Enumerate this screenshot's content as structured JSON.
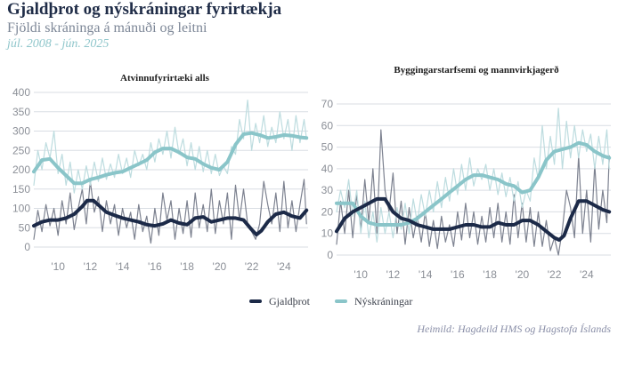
{
  "title": "Gjaldþrot og nýskráningar fyrirtækja",
  "subtitle": "Fjöldi skráninga á mánuði og leitni",
  "period": "júl. 2008 - jún. 2025",
  "source": "Heimild: Hagdeild HMS og Hagstofa Íslands",
  "legend": [
    {
      "label": "Gjaldþrot",
      "color": "#1c2a48"
    },
    {
      "label": "Nýskráningar",
      "color": "#8ac5c9"
    }
  ],
  "colors": {
    "trend_dark": "#1c2a48",
    "raw_dark": "#7d8290",
    "trend_light": "#8ac5c9",
    "raw_light": "#bddcdf",
    "grid": "#d9dde3"
  },
  "chart_data": [
    {
      "type": "line",
      "title": "Atvinnufyrirtæki alls",
      "xlim": [
        2008.5,
        2025.5
      ],
      "ylim": [
        0,
        400
      ],
      "yticks": [
        0,
        50,
        100,
        150,
        200,
        250,
        300,
        350,
        400
      ],
      "xticks": [
        2010,
        2012,
        2014,
        2016,
        2018,
        2020,
        2022,
        2024
      ],
      "xtick_labels": [
        "'10",
        "'12",
        "'14",
        "'16",
        "'18",
        "'20",
        "'22",
        "'24"
      ],
      "grid": true,
      "series": [
        {
          "name": "Gjaldþrot",
          "role": "trend",
          "x": [
            2008.5,
            2009.0,
            2009.5,
            2010.0,
            2010.5,
            2011.0,
            2011.5,
            2011.8,
            2012.2,
            2012.6,
            2013.0,
            2013.5,
            2014.0,
            2014.5,
            2015.0,
            2015.5,
            2016.0,
            2016.5,
            2017.0,
            2017.5,
            2018.0,
            2018.5,
            2019.0,
            2019.5,
            2020.0,
            2020.5,
            2021.0,
            2021.5,
            2022.0,
            2022.3,
            2022.6,
            2023.0,
            2023.5,
            2024.0,
            2024.5,
            2025.0,
            2025.4
          ],
          "y": [
            55,
            65,
            70,
            70,
            75,
            85,
            105,
            120,
            120,
            105,
            90,
            82,
            75,
            70,
            65,
            58,
            55,
            60,
            70,
            62,
            58,
            75,
            78,
            65,
            70,
            75,
            75,
            70,
            45,
            32,
            42,
            65,
            85,
            90,
            80,
            75,
            95
          ]
        },
        {
          "name": "Gjaldþrot",
          "role": "monthly",
          "x": [
            2008.5,
            2008.75,
            2009.0,
            2009.25,
            2009.5,
            2009.75,
            2010.0,
            2010.25,
            2010.5,
            2010.75,
            2011.0,
            2011.25,
            2011.5,
            2011.75,
            2012.0,
            2012.25,
            2012.5,
            2012.75,
            2013.0,
            2013.25,
            2013.5,
            2013.75,
            2014.0,
            2014.25,
            2014.5,
            2014.75,
            2015.0,
            2015.25,
            2015.5,
            2015.75,
            2016.0,
            2016.25,
            2016.5,
            2016.75,
            2017.0,
            2017.25,
            2017.5,
            2017.75,
            2018.0,
            2018.25,
            2018.5,
            2018.75,
            2019.0,
            2019.25,
            2019.5,
            2019.75,
            2020.0,
            2020.25,
            2020.5,
            2020.75,
            2021.0,
            2021.25,
            2021.5,
            2021.75,
            2022.0,
            2022.25,
            2022.5,
            2022.75,
            2023.0,
            2023.25,
            2023.5,
            2023.75,
            2024.0,
            2024.25,
            2024.5,
            2024.75,
            2025.0,
            2025.25,
            2025.4
          ],
          "y": [
            20,
            95,
            40,
            110,
            55,
            100,
            30,
            120,
            60,
            140,
            45,
            100,
            150,
            60,
            170,
            90,
            130,
            40,
            120,
            60,
            110,
            30,
            100,
            50,
            90,
            20,
            110,
            40,
            80,
            10,
            100,
            30,
            140,
            70,
            120,
            20,
            100,
            35,
            120,
            25,
            140,
            50,
            110,
            40,
            150,
            35,
            120,
            60,
            140,
            20,
            160,
            70,
            150,
            60,
            40,
            20,
            60,
            170,
            110,
            60,
            140,
            40,
            170,
            50,
            120,
            40,
            110,
            175,
            60
          ]
        },
        {
          "name": "Nýskráningar",
          "role": "trend",
          "x": [
            2008.5,
            2009.0,
            2009.5,
            2010.0,
            2010.5,
            2011.0,
            2011.5,
            2012.0,
            2012.5,
            2013.0,
            2013.5,
            2014.0,
            2014.5,
            2015.0,
            2015.5,
            2016.0,
            2016.5,
            2017.0,
            2017.5,
            2018.0,
            2018.5,
            2019.0,
            2019.5,
            2020.0,
            2020.5,
            2021.0,
            2021.5,
            2022.0,
            2022.5,
            2023.0,
            2023.5,
            2024.0,
            2024.5,
            2025.0,
            2025.4
          ],
          "y": [
            195,
            225,
            228,
            205,
            185,
            165,
            165,
            175,
            180,
            187,
            192,
            195,
            205,
            215,
            225,
            245,
            255,
            255,
            245,
            232,
            228,
            215,
            205,
            200,
            220,
            265,
            292,
            295,
            290,
            282,
            285,
            290,
            288,
            284,
            282
          ]
        },
        {
          "name": "Nýskráningar",
          "role": "monthly",
          "x": [
            2008.5,
            2008.75,
            2009.0,
            2009.25,
            2009.5,
            2009.75,
            2010.0,
            2010.25,
            2010.5,
            2010.75,
            2011.0,
            2011.25,
            2011.5,
            2011.75,
            2012.0,
            2012.25,
            2012.5,
            2012.75,
            2013.0,
            2013.25,
            2013.5,
            2013.75,
            2014.0,
            2014.25,
            2014.5,
            2014.75,
            2015.0,
            2015.25,
            2015.5,
            2015.75,
            2016.0,
            2016.25,
            2016.5,
            2016.75,
            2017.0,
            2017.25,
            2017.5,
            2017.75,
            2018.0,
            2018.25,
            2018.5,
            2018.75,
            2019.0,
            2019.25,
            2019.5,
            2019.75,
            2020.0,
            2020.25,
            2020.5,
            2020.75,
            2021.0,
            2021.25,
            2021.5,
            2021.75,
            2022.0,
            2022.25,
            2022.5,
            2022.75,
            2023.0,
            2023.25,
            2023.5,
            2023.75,
            2024.0,
            2024.25,
            2024.5,
            2024.75,
            2025.0,
            2025.25,
            2025.4
          ],
          "y": [
            160,
            250,
            200,
            270,
            230,
            300,
            190,
            240,
            160,
            220,
            140,
            200,
            150,
            210,
            160,
            220,
            170,
            230,
            175,
            215,
            180,
            240,
            190,
            230,
            180,
            250,
            210,
            240,
            200,
            270,
            220,
            280,
            240,
            300,
            230,
            310,
            240,
            280,
            210,
            270,
            200,
            260,
            195,
            250,
            190,
            240,
            185,
            210,
            190,
            260,
            240,
            330,
            280,
            380,
            250,
            320,
            270,
            340,
            260,
            310,
            270,
            350,
            280,
            330,
            250,
            340,
            270,
            330,
            280
          ]
        }
      ]
    },
    {
      "type": "line",
      "title": "Byggingarstarfsemi og mannvirkjagerð",
      "xlim": [
        2008.5,
        2025.5
      ],
      "ylim": [
        0,
        70
      ],
      "yticks": [
        0,
        10,
        20,
        30,
        40,
        50,
        60,
        70
      ],
      "xticks": [
        2010,
        2012,
        2014,
        2016,
        2018,
        2020,
        2022,
        2024
      ],
      "xtick_labels": [
        "'10",
        "'12",
        "'14",
        "'16",
        "'18",
        "'20",
        "'22",
        "'24"
      ],
      "grid": true,
      "series": [
        {
          "name": "Gjaldþrot",
          "role": "trend",
          "x": [
            2008.5,
            2009.0,
            2009.5,
            2010.0,
            2010.5,
            2011.0,
            2011.5,
            2012.0,
            2012.5,
            2013.0,
            2013.5,
            2014.0,
            2014.5,
            2015.0,
            2015.5,
            2016.0,
            2016.5,
            2017.0,
            2017.5,
            2018.0,
            2018.5,
            2019.0,
            2019.5,
            2020.0,
            2020.5,
            2021.0,
            2021.5,
            2022.0,
            2022.3,
            2022.6,
            2023.0,
            2023.5,
            2024.0,
            2024.5,
            2025.0,
            2025.4
          ],
          "y": [
            11,
            17,
            20,
            22,
            24,
            26,
            26,
            20,
            17,
            16,
            14,
            13,
            12,
            12,
            12,
            13,
            14,
            14,
            13,
            13,
            15,
            14,
            14,
            16,
            16,
            14,
            11,
            8,
            7,
            9,
            17,
            25,
            25,
            23,
            21,
            20
          ]
        },
        {
          "name": "Gjaldþrot",
          "role": "monthly",
          "x": [
            2008.5,
            2008.75,
            2009.0,
            2009.25,
            2009.5,
            2009.75,
            2010.0,
            2010.25,
            2010.5,
            2010.75,
            2011.0,
            2011.25,
            2011.5,
            2011.75,
            2012.0,
            2012.25,
            2012.5,
            2012.75,
            2013.0,
            2013.25,
            2013.5,
            2013.75,
            2014.0,
            2014.25,
            2014.5,
            2014.75,
            2015.0,
            2015.25,
            2015.5,
            2015.75,
            2016.0,
            2016.25,
            2016.5,
            2016.75,
            2017.0,
            2017.25,
            2017.5,
            2017.75,
            2018.0,
            2018.25,
            2018.5,
            2018.75,
            2019.0,
            2019.25,
            2019.5,
            2019.75,
            2020.0,
            2020.25,
            2020.5,
            2020.75,
            2021.0,
            2021.25,
            2021.5,
            2021.75,
            2022.0,
            2022.25,
            2022.5,
            2022.75,
            2023.0,
            2023.25,
            2023.5,
            2023.75,
            2024.0,
            2024.25,
            2024.5,
            2024.75,
            2025.0,
            2025.25,
            2025.4
          ],
          "y": [
            5,
            25,
            10,
            30,
            8,
            28,
            12,
            35,
            15,
            40,
            10,
            58,
            30,
            20,
            38,
            10,
            25,
            5,
            22,
            8,
            18,
            6,
            20,
            4,
            16,
            3,
            18,
            6,
            14,
            4,
            20,
            7,
            24,
            8,
            20,
            5,
            18,
            6,
            22,
            8,
            24,
            6,
            20,
            5,
            28,
            8,
            24,
            6,
            22,
            4,
            20,
            4,
            16,
            2,
            8,
            0,
            12,
            30,
            22,
            8,
            46,
            10,
            30,
            6,
            42,
            12,
            30,
            15,
            46
          ]
        },
        {
          "name": "Nýskráningar",
          "role": "trend",
          "x": [
            2008.5,
            2009.0,
            2009.5,
            2010.0,
            2010.5,
            2011.0,
            2011.5,
            2012.0,
            2012.5,
            2013.0,
            2013.5,
            2014.0,
            2014.5,
            2015.0,
            2015.5,
            2016.0,
            2016.5,
            2017.0,
            2017.5,
            2018.0,
            2018.5,
            2019.0,
            2019.5,
            2020.0,
            2020.5,
            2021.0,
            2021.5,
            2022.0,
            2022.5,
            2023.0,
            2023.5,
            2024.0,
            2024.5,
            2025.0,
            2025.4
          ],
          "y": [
            24,
            24,
            24,
            18,
            15,
            14,
            14,
            14,
            14,
            15,
            17,
            20,
            23,
            26,
            29,
            32,
            35,
            37,
            37,
            36,
            35,
            33,
            32,
            29,
            30,
            36,
            44,
            48,
            49,
            50,
            52,
            51,
            48,
            46,
            45
          ]
        },
        {
          "name": "Nýskráningar",
          "role": "monthly",
          "x": [
            2008.5,
            2008.75,
            2009.0,
            2009.25,
            2009.5,
            2009.75,
            2010.0,
            2010.25,
            2010.5,
            2010.75,
            2011.0,
            2011.25,
            2011.5,
            2011.75,
            2012.0,
            2012.25,
            2012.5,
            2012.75,
            2013.0,
            2013.25,
            2013.5,
            2013.75,
            2014.0,
            2014.25,
            2014.5,
            2014.75,
            2015.0,
            2015.25,
            2015.5,
            2015.75,
            2016.0,
            2016.25,
            2016.5,
            2016.75,
            2017.0,
            2017.25,
            2017.5,
            2017.75,
            2018.0,
            2018.25,
            2018.5,
            2018.75,
            2019.0,
            2019.25,
            2019.5,
            2019.75,
            2020.0,
            2020.25,
            2020.5,
            2020.75,
            2021.0,
            2021.25,
            2021.5,
            2021.75,
            2022.0,
            2022.25,
            2022.5,
            2022.75,
            2023.0,
            2023.25,
            2023.5,
            2023.75,
            2024.0,
            2024.25,
            2024.5,
            2024.75,
            2025.0,
            2025.25,
            2025.4
          ],
          "y": [
            20,
            30,
            22,
            35,
            18,
            30,
            10,
            25,
            8,
            20,
            6,
            22,
            10,
            20,
            8,
            22,
            12,
            24,
            10,
            26,
            15,
            28,
            18,
            30,
            20,
            34,
            22,
            36,
            25,
            40,
            28,
            42,
            30,
            45,
            32,
            40,
            35,
            42,
            30,
            40,
            28,
            38,
            27,
            36,
            25,
            34,
            22,
            30,
            25,
            45,
            35,
            60,
            40,
            55,
            42,
            68,
            40,
            62,
            45,
            60,
            45,
            58,
            48,
            56,
            40,
            55,
            42,
            58,
            40
          ]
        }
      ]
    }
  ]
}
